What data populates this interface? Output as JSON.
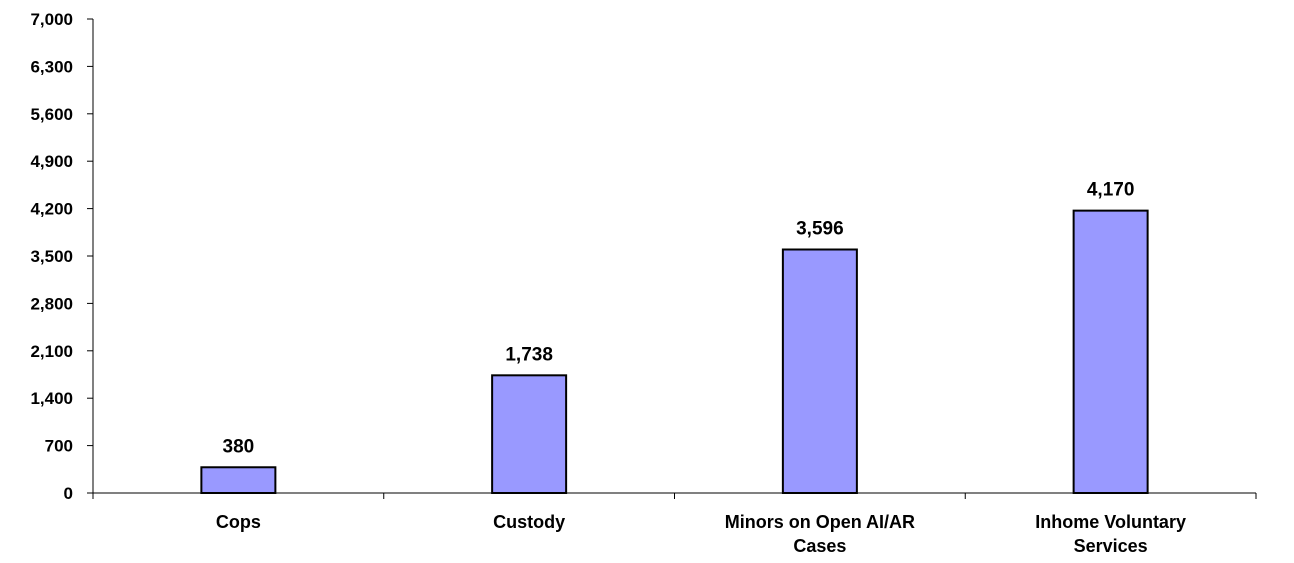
{
  "chart_data": {
    "type": "bar",
    "categories": [
      [
        "Cops"
      ],
      [
        "Custody"
      ],
      [
        "Minors on Open AI/AR",
        "Cases"
      ],
      [
        "Inhome Voluntary",
        "Services"
      ]
    ],
    "values": [
      380,
      1738,
      3596,
      4170
    ],
    "data_labels": [
      "380",
      "1,738",
      "3,596",
      "4,170"
    ],
    "yticks": [
      0,
      700,
      1400,
      2100,
      2800,
      3500,
      4200,
      4900,
      5600,
      6300,
      7000
    ],
    "ytick_labels": [
      "0",
      "700",
      "1,400",
      "2,100",
      "2,800",
      "3,500",
      "4,200",
      "4,900",
      "5,600",
      "6,300",
      "7,000"
    ],
    "ylim": [
      0,
      7000
    ],
    "grid": false,
    "legend": "none",
    "colors": {
      "bar_fill": "#9999ff",
      "bar_stroke": "#000000",
      "axis": "#000000"
    }
  }
}
